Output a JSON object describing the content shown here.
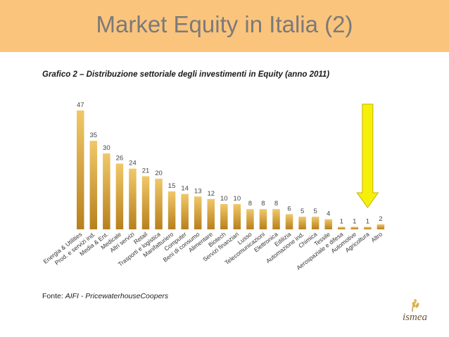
{
  "page": {
    "title": "Market Equity in Italia (2)",
    "subtitle": "Grafico 2 – Distribuzione settoriale degli investimenti in Equity (anno 2011)",
    "source_label": "Fonte: ",
    "source_value": "AIFI - PricewaterhouseCoopers",
    "logo_text": "ismea"
  },
  "colors": {
    "header_bg": "#fbc47c",
    "bar_top": "#f0c869",
    "bar_bottom": "#b8801c",
    "arrow_fill": "#f5f00a",
    "arrow_stroke": "#c8b000"
  },
  "chart_data": {
    "type": "bar",
    "categories": [
      "Energia & Utilities",
      "Prod. e servizi ind.",
      "Media & Ent.",
      "Medicale",
      "Altri servizi",
      "Retail",
      "Trasporti e logistica",
      "Manifatturiero",
      "Computer",
      "Beni di consumo",
      "Alimentare",
      "Biotech",
      "Servizi finanziari",
      "Lusso",
      "Telecomunicazioni",
      "Elettronica",
      "Edilizia",
      "Automazione ind.",
      "Chimica",
      "Tessile",
      "Aerospaziale e difesa",
      "Automotive",
      "Agricoltura",
      "Altro"
    ],
    "values": [
      47,
      35,
      30,
      26,
      24,
      21,
      20,
      15,
      14,
      13,
      12,
      10,
      10,
      8,
      8,
      8,
      6,
      5,
      5,
      4,
      1,
      1,
      1,
      2
    ],
    "value_labels": [
      "47",
      "35",
      "30",
      "26",
      "24",
      "21",
      "20",
      "15",
      "14",
      "13",
      "12",
      "10",
      "10",
      "8",
      "8",
      "8",
      "6",
      "5",
      "5",
      "4",
      "1",
      "1",
      "1",
      "2"
    ],
    "ylim": [
      0,
      50
    ],
    "grid": false,
    "legend": "none",
    "highlight_category": "Agricoltura",
    "annotation": "yellow arrow pointing down at Agricoltura"
  }
}
